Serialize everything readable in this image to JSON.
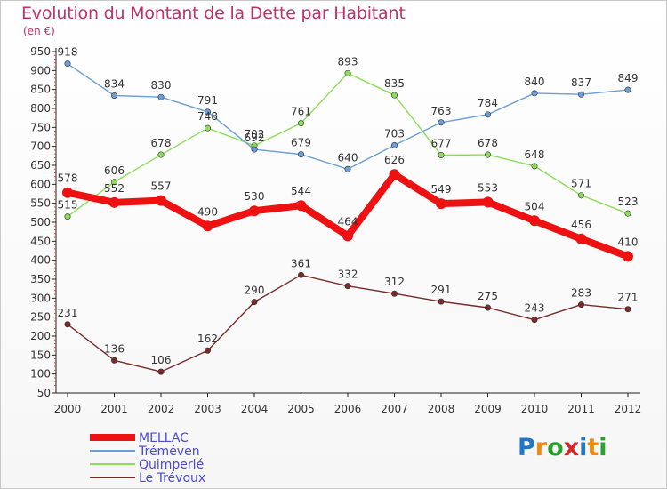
{
  "title": "Evolution du Montant de la Dette par Habitant",
  "subtitle": "(en €)",
  "logo": {
    "text": "Proxiti",
    "colors": [
      "#1f77c8",
      "#ef8a10",
      "#2ca02c",
      "#d62728",
      "#1f77c8",
      "#ef8a10",
      "#2ca02c"
    ]
  },
  "chart_data": {
    "type": "line",
    "x": [
      "2000",
      "2001",
      "2002",
      "2003",
      "2004",
      "2005",
      "2006",
      "2007",
      "2008",
      "2009",
      "2010",
      "2011",
      "2012"
    ],
    "ylim": [
      50,
      950
    ],
    "yticks": [
      50,
      100,
      150,
      200,
      250,
      300,
      350,
      400,
      450,
      500,
      550,
      600,
      650,
      700,
      750,
      800,
      850,
      900,
      950
    ],
    "grid": false,
    "legend_position": "bottom-left",
    "series": [
      {
        "name": "MELLAC",
        "color": "#ee1111",
        "values": [
          578,
          552,
          557,
          490,
          530,
          544,
          464,
          626,
          549,
          553,
          504,
          456,
          410
        ]
      },
      {
        "name": "Tréméven",
        "color": "#6d9fd6",
        "values": [
          918,
          834,
          830,
          791,
          692,
          679,
          640,
          703,
          763,
          784,
          840,
          837,
          849
        ]
      },
      {
        "name": "Quimperlé",
        "color": "#8cde5a",
        "values": [
          515,
          606,
          678,
          748,
          702,
          761,
          893,
          835,
          677,
          678,
          648,
          571,
          523
        ]
      },
      {
        "name": "Le Trévoux",
        "color": "#7a2a2a",
        "values": [
          231,
          136,
          106,
          162,
          290,
          361,
          332,
          312,
          291,
          275,
          243,
          283,
          271
        ]
      }
    ]
  }
}
